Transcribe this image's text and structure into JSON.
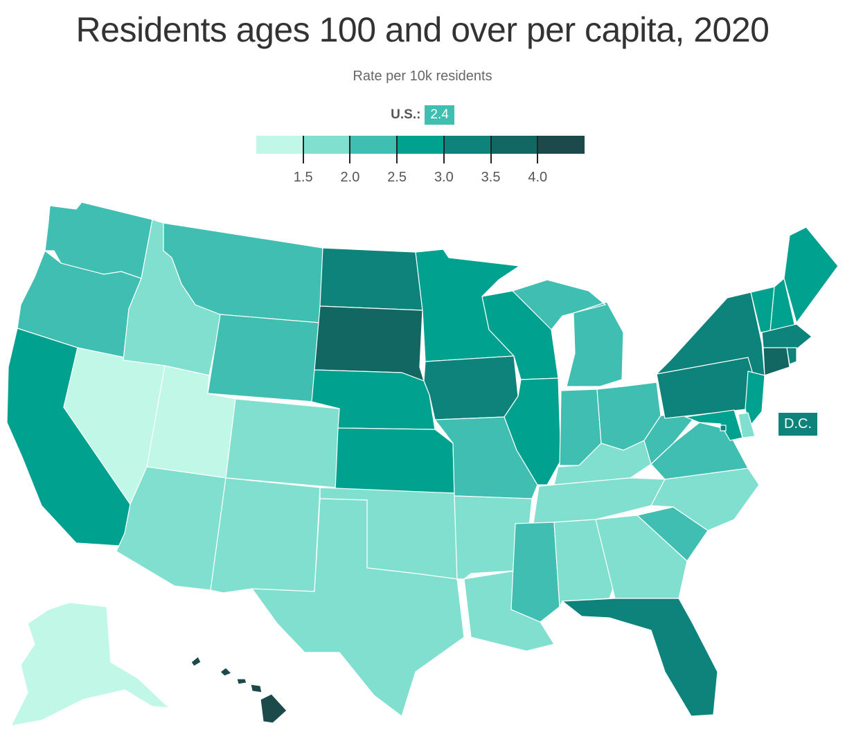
{
  "title": "Residents ages 100 and over per capita, 2020",
  "subtitle": "Rate per 10k residents",
  "us_average": {
    "label": "U.S.:",
    "value": "2.4"
  },
  "legend": {
    "colors": [
      "#c0f7e7",
      "#80dfce",
      "#40beb1",
      "#00a18f",
      "#0d837b",
      "#136762",
      "#1c4a4a"
    ],
    "ticks": [
      "1.5",
      "2.0",
      "2.5",
      "3.0",
      "3.5",
      "4.0"
    ]
  },
  "dc_label": "D.C.",
  "state_bins": {
    "WA": 2,
    "OR": 2,
    "CA": 3,
    "NV": 0,
    "ID": 1,
    "MT": 2,
    "WY": 2,
    "UT": 0,
    "AZ": 1,
    "CO": 1,
    "NM": 1,
    "ND": 4,
    "SD": 5,
    "NE": 3,
    "KS": 3,
    "OK": 1,
    "TX": 1,
    "MN": 3,
    "IA": 4,
    "MO": 2,
    "AR": 1,
    "LA": 1,
    "WI": 3,
    "IL": 3,
    "MI": 2,
    "IN": 2,
    "OH": 2,
    "KY": 1,
    "TN": 1,
    "MS": 2,
    "AL": 1,
    "GA": 1,
    "FL": 4,
    "SC": 2,
    "NC": 1,
    "VA": 2,
    "WV": 2,
    "PA": 4,
    "NY": 4,
    "VT": 3,
    "NH": 3,
    "ME": 3,
    "MA": 4,
    "RI": 4,
    "CT": 5,
    "NJ": 3,
    "DE": 1,
    "MD": 3,
    "DC": 4,
    "AK": 0,
    "HI": 6
  }
}
